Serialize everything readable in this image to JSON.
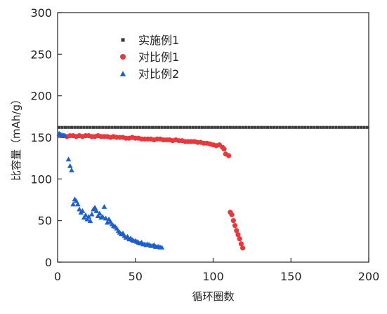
{
  "chart_data": {
    "type": "scatter",
    "xlabel": "循环圈数",
    "ylabel": "比容量（mAh/g）",
    "xlim": [
      0,
      200
    ],
    "ylim": [
      0,
      300
    ],
    "x_ticks": [
      0,
      50,
      100,
      150,
      200
    ],
    "y_ticks": [
      0,
      50,
      100,
      150,
      200,
      250,
      300
    ],
    "grid": false,
    "legend_position": "top-left",
    "series": [
      {
        "name": "实施例1",
        "marker": "square",
        "color": "#3b3b3b",
        "x": [
          1,
          3,
          5,
          7,
          9,
          11,
          13,
          15,
          17,
          19,
          21,
          23,
          25,
          27,
          29,
          31,
          33,
          35,
          37,
          39,
          41,
          43,
          45,
          47,
          49,
          51,
          53,
          55,
          57,
          59,
          61,
          63,
          65,
          67,
          69,
          71,
          73,
          75,
          77,
          79,
          81,
          83,
          85,
          87,
          89,
          91,
          93,
          95,
          97,
          99,
          101,
          103,
          105,
          107,
          109,
          111,
          113,
          115,
          117,
          119,
          121,
          123,
          125,
          127,
          129,
          131,
          133,
          135,
          137,
          139,
          141,
          143,
          145,
          147,
          149,
          151,
          153,
          155,
          157,
          159,
          161,
          163,
          165,
          167,
          169,
          171,
          173,
          175,
          177,
          179,
          181,
          183,
          185,
          187,
          189,
          191,
          193,
          195,
          197,
          199
        ],
        "y": [
          162,
          162,
          162,
          162,
          162,
          162,
          162,
          162,
          162,
          162,
          162,
          162,
          162,
          162,
          162,
          162,
          162,
          162,
          162,
          162,
          162,
          162,
          162,
          162,
          162,
          162,
          162,
          162,
          162,
          162,
          162,
          162,
          162,
          162,
          162,
          162,
          162,
          162,
          162,
          162,
          162,
          162,
          162,
          162,
          162,
          162,
          162,
          162,
          162,
          162,
          162,
          162,
          162,
          162,
          162,
          162,
          162,
          162,
          162,
          162,
          162,
          162,
          162,
          162,
          162,
          162,
          162,
          162,
          162,
          162,
          162,
          162,
          162,
          162,
          162,
          162,
          162,
          162,
          162,
          162,
          162,
          162,
          162,
          162,
          162,
          162,
          162,
          162,
          162,
          162,
          162,
          162,
          162,
          162,
          162,
          162,
          162,
          162,
          162,
          162
        ]
      },
      {
        "name": "对比例1",
        "marker": "circle",
        "color": "#e8383d",
        "x": [
          2,
          4,
          6,
          8,
          10,
          12,
          14,
          16,
          18,
          20,
          22,
          24,
          26,
          28,
          30,
          32,
          34,
          36,
          38,
          40,
          42,
          44,
          46,
          48,
          50,
          52,
          54,
          56,
          58,
          60,
          62,
          64,
          66,
          68,
          70,
          72,
          74,
          76,
          78,
          80,
          82,
          84,
          86,
          88,
          90,
          92,
          94,
          96,
          98,
          100,
          102,
          104,
          106,
          107,
          108,
          110,
          111,
          112,
          113,
          114,
          115,
          116,
          117,
          118,
          119
        ],
        "y": [
          152,
          152,
          151,
          152,
          152,
          151,
          152,
          151,
          152,
          152,
          151,
          151,
          152,
          151,
          151,
          151,
          150,
          151,
          150,
          150,
          150,
          149,
          149,
          150,
          149,
          149,
          148,
          148,
          148,
          148,
          147,
          148,
          148,
          147,
          147,
          147,
          146,
          147,
          146,
          146,
          145,
          145,
          145,
          145,
          144,
          144,
          143,
          143,
          142,
          141,
          140,
          141,
          138,
          136,
          130,
          128,
          60,
          57,
          50,
          44,
          38,
          33,
          28,
          22,
          17
        ]
      },
      {
        "name": "对比例2",
        "marker": "triangle",
        "color": "#1f5fc8",
        "x": [
          1,
          2,
          3,
          4,
          5,
          7,
          8,
          9,
          10,
          11,
          12,
          13,
          14,
          15,
          16,
          17,
          18,
          19,
          20,
          21,
          22,
          23,
          24,
          25,
          26,
          27,
          28,
          29,
          30,
          31,
          32,
          33,
          34,
          35,
          36,
          37,
          38,
          39,
          40,
          41,
          42,
          43,
          44,
          45,
          46,
          47,
          48,
          49,
          50,
          51,
          52,
          53,
          54,
          55,
          56,
          57,
          58,
          59,
          60,
          61,
          62,
          63,
          64,
          65,
          66,
          67
        ],
        "y": [
          155,
          154,
          153,
          152,
          152,
          124,
          116,
          111,
          70,
          76,
          74,
          70,
          64,
          60,
          62,
          54,
          57,
          52,
          55,
          50,
          58,
          64,
          66,
          62,
          56,
          59,
          54,
          55,
          67,
          53,
          48,
          52,
          49,
          46,
          44,
          43,
          41,
          38,
          36,
          34,
          35,
          32,
          30,
          31,
          28,
          29,
          27,
          26,
          26,
          25,
          24,
          23,
          24,
          22,
          22,
          21,
          22,
          21,
          20,
          20,
          21,
          19,
          19,
          19,
          18,
          18
        ]
      }
    ]
  }
}
